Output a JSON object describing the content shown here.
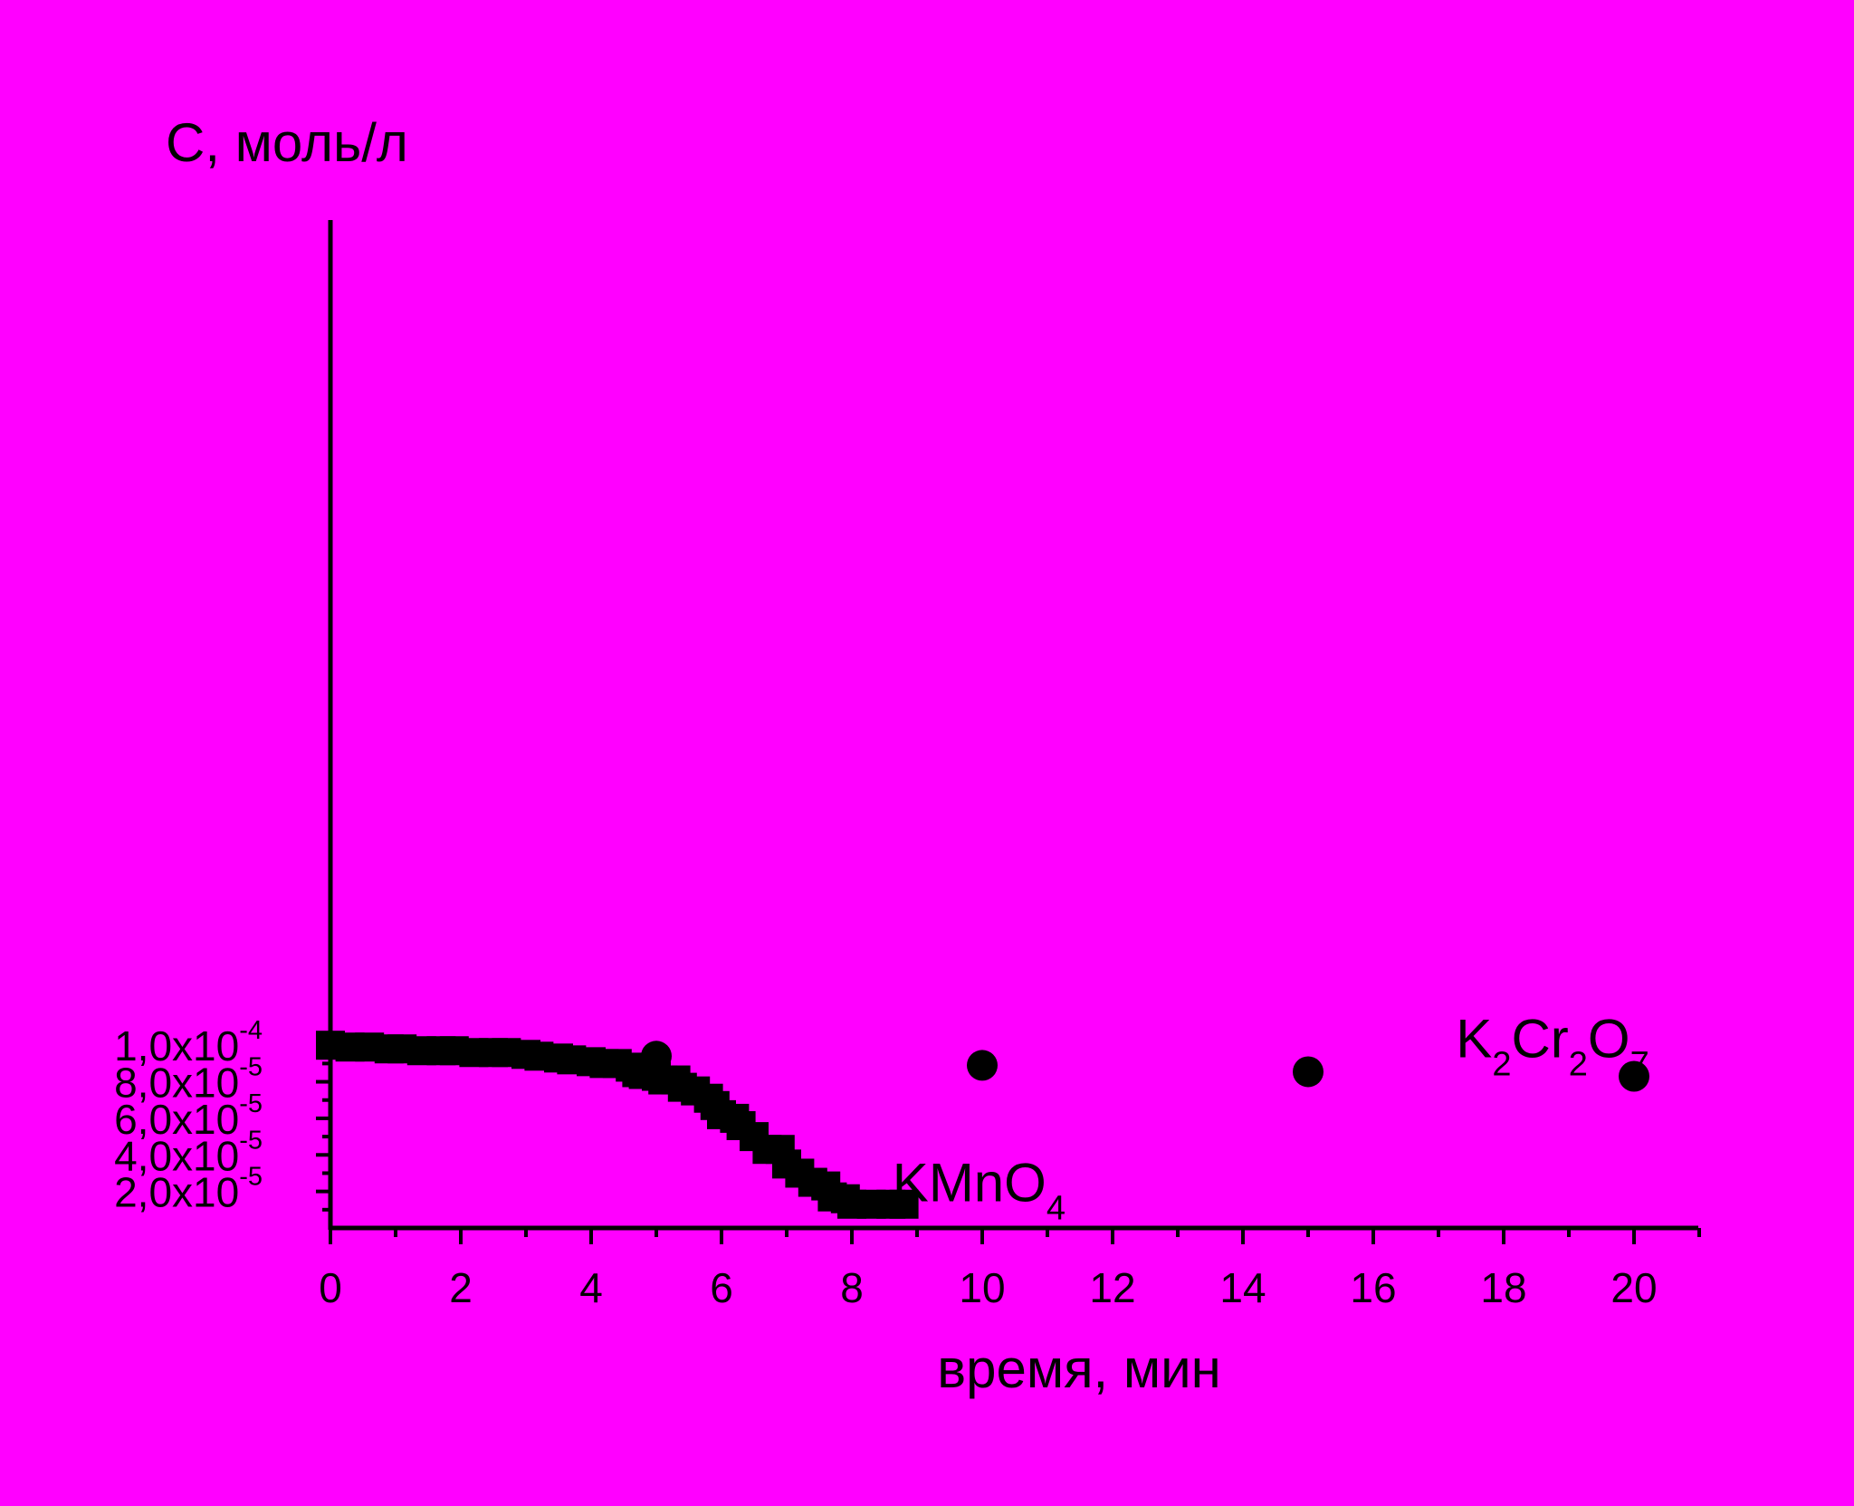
{
  "chart_data": {
    "type": "scatter",
    "title": "",
    "xlabel": "время, мин",
    "ylabel": "C, моль/л",
    "xlim": [
      0,
      21
    ],
    "ylim": [
      0,
      0.00011
    ],
    "x_ticks": [
      {
        "value": 0,
        "label": "0"
      },
      {
        "value": 2,
        "label": "2"
      },
      {
        "value": 4,
        "label": "4"
      },
      {
        "value": 6,
        "label": "6"
      },
      {
        "value": 8,
        "label": "8"
      },
      {
        "value": 10,
        "label": "10"
      },
      {
        "value": 12,
        "label": "12"
      },
      {
        "value": 14,
        "label": "14"
      },
      {
        "value": 16,
        "label": "16"
      },
      {
        "value": 18,
        "label": "18"
      },
      {
        "value": 20,
        "label": "20"
      }
    ],
    "y_ticks": [
      {
        "value": 2e-05,
        "mantissa": "2,0x10",
        "exponent": "-5"
      },
      {
        "value": 4e-05,
        "mantissa": "4,0x10",
        "exponent": "-5"
      },
      {
        "value": 6e-05,
        "mantissa": "6,0x10",
        "exponent": "-5"
      },
      {
        "value": 8e-05,
        "mantissa": "8,0x10",
        "exponent": "-5"
      },
      {
        "value": 0.0001,
        "mantissa": "1,0x10",
        "exponent": "-4"
      }
    ],
    "grid": false,
    "legend": "none",
    "series": [
      {
        "marker": "square",
        "color": "#000000",
        "label_parts": [
          "KMnO",
          "4"
        ],
        "label_anchor": [
          9.95,
          1.45e-05
        ],
        "x": [
          0.0,
          0.3,
          0.6,
          0.9,
          1.1,
          1.4,
          1.7,
          1.9,
          2.2,
          2.5,
          2.7,
          3.0,
          3.2,
          3.5,
          3.7,
          4.0,
          4.2,
          4.4,
          4.6,
          4.7,
          4.8,
          5.0,
          5.1,
          5.3,
          5.4,
          5.6,
          5.8,
          5.9,
          6.0,
          6.2,
          6.3,
          6.5,
          6.7,
          6.9,
          7.0,
          7.2,
          7.4,
          7.6,
          7.7,
          7.9,
          8.0,
          8.3,
          8.6,
          8.8
        ],
        "y": [
          0.0001,
          9.9e-05,
          9.9e-05,
          9.8e-05,
          9.8e-05,
          9.7e-05,
          9.7e-05,
          9.7e-05,
          9.6e-05,
          9.6e-05,
          9.6e-05,
          9.5e-05,
          9.4e-05,
          9.3e-05,
          9.2e-05,
          9.1e-05,
          9e-05,
          9e-05,
          8.8e-05,
          8.5e-05,
          8.4e-05,
          8.3e-05,
          8.1e-05,
          8.1e-05,
          7.7e-05,
          7.5e-05,
          7.1e-05,
          6.7e-05,
          6.2e-05,
          6e-05,
          5.6e-05,
          5e-05,
          4.3e-05,
          4.3e-05,
          3.5e-05,
          3e-05,
          2.5e-05,
          2.3e-05,
          1.7e-05,
          1.6e-05,
          1.3e-05,
          1.3e-05,
          1.3e-05,
          1.3e-05
        ]
      },
      {
        "marker": "circle",
        "color": "#000000",
        "label_parts": [
          "K",
          "2",
          "Cr",
          "2",
          "O",
          "7"
        ],
        "label_anchor": [
          18.75,
          9.33e-05
        ],
        "x": [
          5,
          10,
          15,
          20
        ],
        "y": [
          9.4e-05,
          8.9e-05,
          8.55e-05,
          8.3e-05
        ]
      }
    ]
  }
}
